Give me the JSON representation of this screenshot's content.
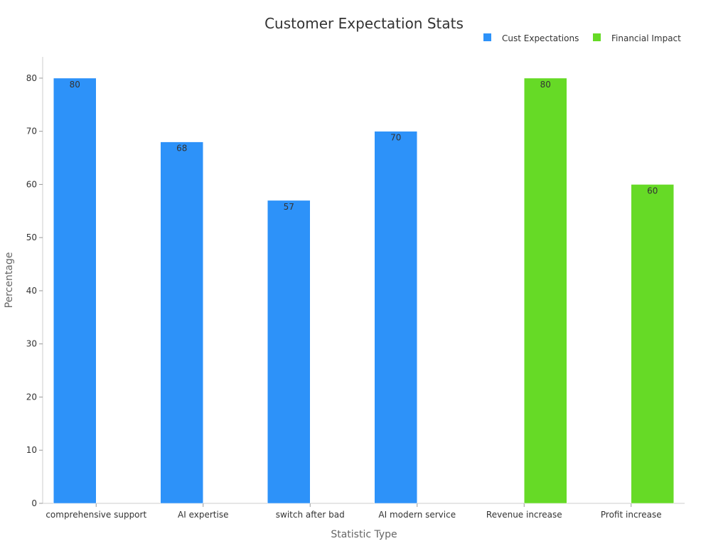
{
  "chart_data": {
    "type": "bar",
    "title": "Customer Expectation Stats",
    "xlabel": "Statistic Type",
    "ylabel": "Percentage",
    "ylim": [
      0,
      84
    ],
    "yticks": [
      0,
      10,
      20,
      30,
      40,
      50,
      60,
      70,
      80
    ],
    "grid": false,
    "legend_position": "top-right",
    "categories": [
      "comprehensive support",
      "AI expertise",
      "switch after bad",
      "AI modern service",
      "Revenue increase",
      "Profit increase"
    ],
    "series": [
      {
        "name": "Cust Expectations",
        "color": "#2d92f9",
        "values": [
          80,
          68,
          57,
          70,
          null,
          null
        ]
      },
      {
        "name": "Financial Impact",
        "color": "#66da26",
        "values": [
          null,
          null,
          null,
          null,
          80,
          60
        ]
      }
    ]
  }
}
